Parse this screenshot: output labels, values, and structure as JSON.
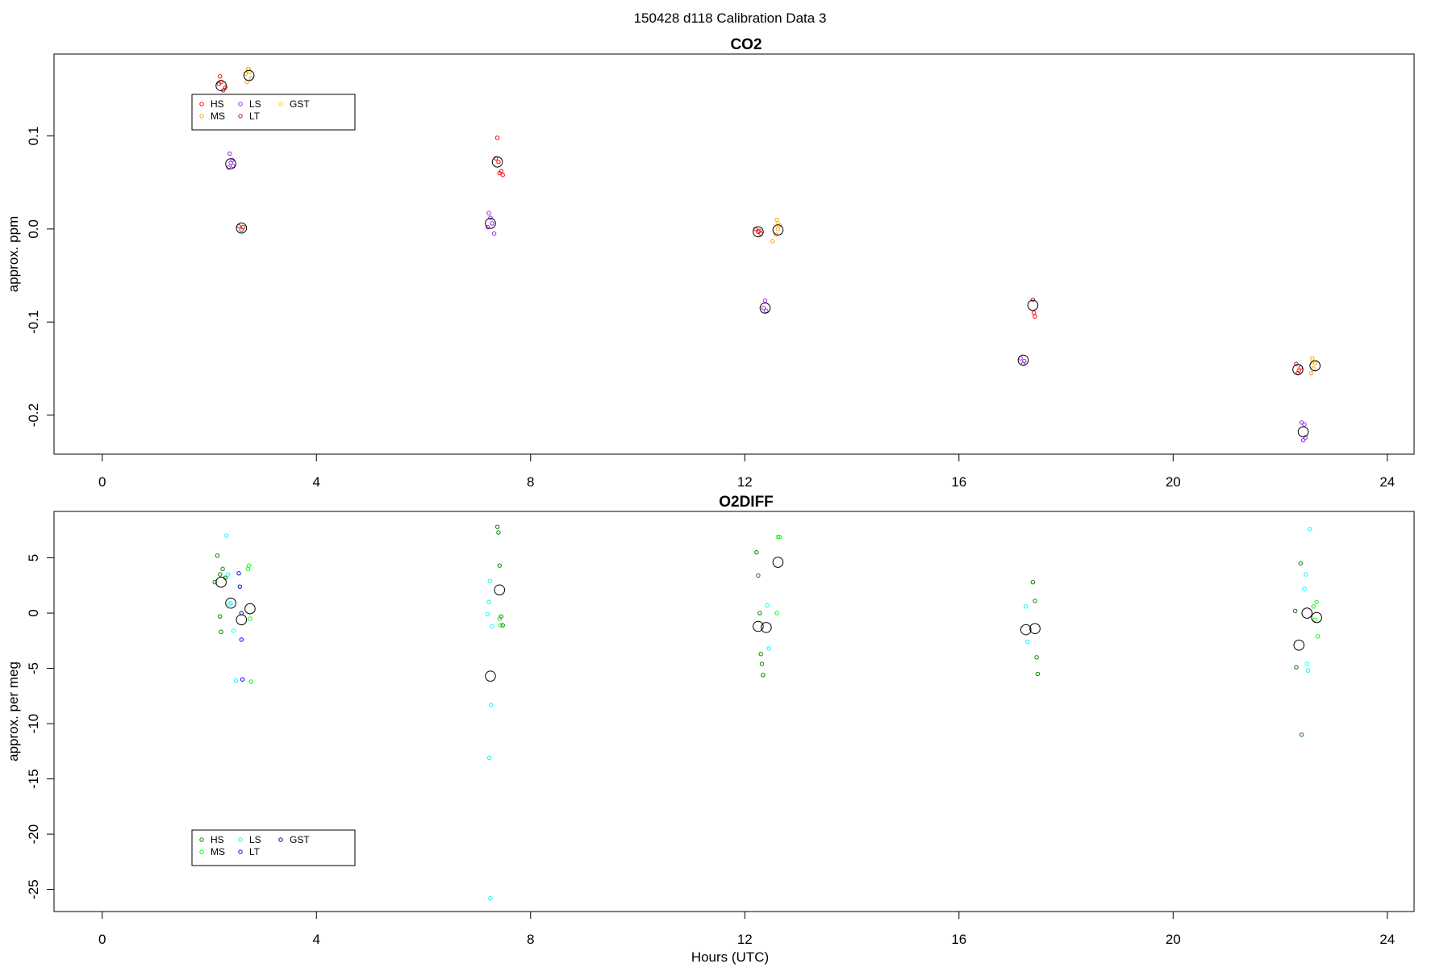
{
  "figure": {
    "title": "150428   d118   Calibration Data 3",
    "xlabel": "Hours (UTC)"
  },
  "chart_data": [
    {
      "type": "scatter",
      "title": "CO2",
      "xlabel": "",
      "ylabel": "approx. ppm",
      "xlim": [
        -0.9,
        24.5
      ],
      "ylim": [
        -0.242,
        0.188
      ],
      "xticks": [
        0,
        4,
        8,
        12,
        16,
        20,
        24
      ],
      "yticks": [
        -0.2,
        -0.1,
        0.0,
        0.1
      ],
      "ytick_labels": [
        "-0.2",
        "-0.1",
        "0.0",
        "0.1"
      ],
      "grid": false,
      "legend": {
        "placement": "top-left",
        "columns": [
          [
            "HS",
            "MS"
          ],
          [
            "LS",
            "LT"
          ],
          [
            "GST"
          ]
        ],
        "entries": [
          "HS",
          "MS",
          "LS",
          "LT",
          "GST"
        ]
      },
      "series": [
        {
          "name": "HS",
          "color": "#FF0000",
          "points": [
            [
              2.2,
              0.164
            ],
            [
              2.22,
              0.158
            ],
            [
              2.26,
              0.149
            ],
            [
              2.18,
              0.156
            ],
            [
              2.3,
              0.152
            ],
            [
              7.38,
              0.098
            ],
            [
              7.35,
              0.076
            ],
            [
              7.4,
              0.072
            ],
            [
              7.42,
              0.06
            ],
            [
              7.48,
              0.058
            ],
            [
              7.45,
              0.062
            ],
            [
              12.2,
              0.0
            ],
            [
              12.25,
              -0.003
            ],
            [
              12.3,
              -0.005
            ],
            [
              12.27,
              -0.002
            ],
            [
              17.38,
              -0.076
            ],
            [
              17.4,
              -0.09
            ],
            [
              17.42,
              -0.094
            ],
            [
              22.3,
              -0.145
            ],
            [
              22.35,
              -0.152
            ],
            [
              22.33,
              -0.155
            ],
            [
              22.38,
              -0.149
            ]
          ]
        },
        {
          "name": "MS",
          "color": "#FFA500",
          "points": [
            [
              2.68,
              0.167
            ],
            [
              2.72,
              0.172
            ],
            [
              2.75,
              0.169
            ],
            [
              2.7,
              0.158
            ],
            [
              2.78,
              0.162
            ],
            [
              12.6,
              0.01
            ],
            [
              12.65,
              0.004
            ],
            [
              12.58,
              -0.006
            ],
            [
              12.52,
              -0.013
            ],
            [
              12.62,
              0.0
            ],
            [
              22.6,
              -0.139
            ],
            [
              22.58,
              -0.155
            ],
            [
              22.65,
              -0.144
            ],
            [
              22.62,
              -0.15
            ]
          ]
        },
        {
          "name": "LS",
          "color": "#A020F0",
          "points": [
            [
              2.38,
              0.081
            ],
            [
              2.4,
              0.071
            ],
            [
              2.44,
              0.068
            ],
            [
              2.43,
              0.074
            ],
            [
              2.36,
              0.066
            ],
            [
              7.22,
              0.017
            ],
            [
              7.25,
              0.012
            ],
            [
              7.28,
              0.006
            ],
            [
              7.32,
              -0.005
            ],
            [
              7.2,
              0.002
            ],
            [
              12.38,
              -0.077
            ],
            [
              12.4,
              -0.088
            ],
            [
              12.35,
              -0.085
            ],
            [
              17.15,
              -0.139
            ],
            [
              17.2,
              -0.145
            ],
            [
              17.22,
              -0.142
            ],
            [
              22.4,
              -0.208
            ],
            [
              22.45,
              -0.21
            ],
            [
              22.47,
              -0.224
            ],
            [
              22.43,
              -0.227
            ]
          ]
        },
        {
          "name": "LT",
          "color": "#B22222",
          "points": [
            [
              2.55,
              0.003
            ],
            [
              2.6,
              -0.001
            ],
            [
              2.63,
              0.002
            ]
          ]
        },
        {
          "name": "GST",
          "color": "#FFD700",
          "points": [
            [
              2.74,
              0.172
            ],
            [
              12.62,
              0.006
            ],
            [
              22.6,
              -0.143
            ]
          ]
        },
        {
          "name": "",
          "color": "#000000",
          "mean": true,
          "points": [
            [
              2.22,
              0.154
            ],
            [
              2.74,
              0.165
            ],
            [
              2.4,
              0.07
            ],
            [
              2.6,
              0.001
            ],
            [
              7.38,
              0.072
            ],
            [
              7.25,
              0.006
            ],
            [
              12.25,
              -0.003
            ],
            [
              12.62,
              -0.001
            ],
            [
              12.38,
              -0.085
            ],
            [
              17.38,
              -0.082
            ],
            [
              17.2,
              -0.141
            ],
            [
              22.33,
              -0.151
            ],
            [
              22.65,
              -0.147
            ],
            [
              22.43,
              -0.218
            ]
          ]
        }
      ]
    },
    {
      "type": "scatter",
      "title": "O2DIFF",
      "xlabel": "Hours (UTC)",
      "ylabel": "approx. per meg",
      "xlim": [
        -0.9,
        24.5
      ],
      "ylim": [
        -27.0,
        9.2
      ],
      "xticks": [
        0,
        4,
        8,
        12,
        16,
        20,
        24
      ],
      "yticks": [
        -25,
        -20,
        -15,
        -10,
        -5,
        0,
        5
      ],
      "ytick_labels": [
        "-25",
        "-20",
        "-15",
        "-10",
        "-5",
        "0",
        "5"
      ],
      "grid": false,
      "legend": {
        "placement": "bottom-left",
        "columns": [
          [
            "HS",
            "MS"
          ],
          [
            "LS",
            "LT"
          ],
          [
            "GST"
          ]
        ],
        "entries": [
          "HS",
          "MS",
          "LS",
          "LT",
          "GST"
        ]
      },
      "series": [
        {
          "name": "HS",
          "color": "#008000",
          "points": [
            [
              2.15,
              5.2
            ],
            [
              2.2,
              3.5
            ],
            [
              2.25,
              4.0
            ],
            [
              2.3,
              3.2
            ],
            [
              2.1,
              2.8
            ],
            [
              2.2,
              -0.3
            ],
            [
              2.22,
              -1.7
            ],
            [
              7.42,
              4.3
            ],
            [
              7.38,
              7.8
            ],
            [
              7.4,
              7.3
            ],
            [
              7.45,
              -0.3
            ],
            [
              7.48,
              -1.1
            ],
            [
              12.22,
              5.5
            ],
            [
              12.25,
              3.4
            ],
            [
              12.28,
              0.0
            ],
            [
              12.3,
              -3.7
            ],
            [
              12.32,
              -4.6
            ],
            [
              12.34,
              -5.6
            ],
            [
              17.38,
              2.8
            ],
            [
              17.42,
              1.1
            ],
            [
              17.45,
              -4.0
            ],
            [
              17.47,
              -5.5
            ],
            [
              22.28,
              0.2
            ],
            [
              22.3,
              -4.9
            ],
            [
              22.38,
              4.5
            ],
            [
              22.4,
              -11.0
            ]
          ]
        },
        {
          "name": "MS",
          "color": "#00FF00",
          "points": [
            [
              2.72,
              4.0
            ],
            [
              2.74,
              4.3
            ],
            [
              2.76,
              -0.5
            ],
            [
              2.78,
              -6.2
            ],
            [
              7.42,
              -0.5
            ],
            [
              7.44,
              -1.1
            ],
            [
              12.62,
              6.9
            ],
            [
              12.65,
              6.9
            ],
            [
              12.6,
              0.0
            ],
            [
              22.65,
              -0.6
            ],
            [
              22.68,
              1.0
            ],
            [
              22.7,
              -2.1
            ],
            [
              22.62,
              0.6
            ]
          ]
        },
        {
          "name": "LS",
          "color": "#00FFFF",
          "points": [
            [
              2.32,
              7.0
            ],
            [
              2.35,
              3.5
            ],
            [
              2.38,
              0.8
            ],
            [
              2.4,
              0.9
            ],
            [
              2.45,
              -1.6
            ],
            [
              2.5,
              -6.1
            ],
            [
              7.2,
              -0.1
            ],
            [
              7.22,
              1.0
            ],
            [
              7.24,
              2.9
            ],
            [
              7.26,
              -8.3
            ],
            [
              7.23,
              -13.1
            ],
            [
              7.25,
              -25.8
            ],
            [
              7.28,
              -1.2
            ],
            [
              12.42,
              0.7
            ],
            [
              12.45,
              -3.2
            ],
            [
              17.25,
              0.6
            ],
            [
              17.28,
              -2.6
            ],
            [
              22.45,
              2.2
            ],
            [
              22.48,
              3.5
            ],
            [
              22.5,
              -4.6
            ],
            [
              22.52,
              -5.2
            ],
            [
              22.55,
              7.6
            ]
          ]
        },
        {
          "name": "LT",
          "color": "#0000FF",
          "points": [
            [
              2.55,
              3.6
            ],
            [
              2.57,
              2.4
            ],
            [
              2.6,
              -2.4
            ],
            [
              2.62,
              -6.0
            ]
          ]
        },
        {
          "name": "GST",
          "color": "#00008B",
          "points": [
            [
              2.6,
              0.0
            ]
          ]
        },
        {
          "name": "",
          "color": "#000000",
          "mean": true,
          "points": [
            [
              2.22,
              2.8
            ],
            [
              2.4,
              0.9
            ],
            [
              2.6,
              -0.6
            ],
            [
              2.76,
              0.4
            ],
            [
              7.25,
              -5.7
            ],
            [
              7.42,
              2.1
            ],
            [
              12.25,
              -1.2
            ],
            [
              12.4,
              -1.3
            ],
            [
              12.62,
              4.6
            ],
            [
              17.25,
              -1.5
            ],
            [
              17.42,
              -1.4
            ],
            [
              22.35,
              -2.9
            ],
            [
              22.5,
              0.0
            ],
            [
              22.68,
              -0.4
            ]
          ]
        }
      ]
    }
  ]
}
